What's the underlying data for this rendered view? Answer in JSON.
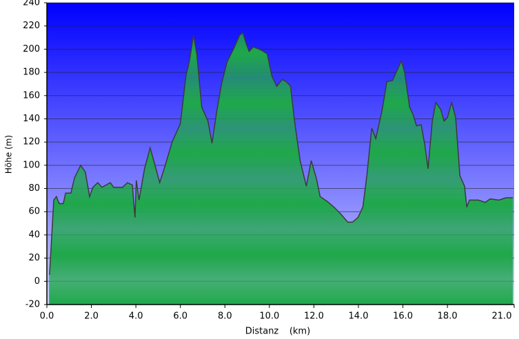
{
  "chart_data": {
    "type": "area",
    "x_label": "Distanz",
    "x_unit": "(km)",
    "y_label": "Höhe (m)",
    "grid": true,
    "background": [
      "#0000ff",
      "#d0d0ff"
    ],
    "color": "#1fa84a",
    "line_color": "#3a3a3a",
    "xlim": [
      0,
      21
    ],
    "ylim": [
      -20,
      240
    ],
    "xticks": [
      {
        "value": 0,
        "label": "0.0"
      },
      {
        "value": 2,
        "label": "2.0"
      },
      {
        "value": 4,
        "label": "4.0"
      },
      {
        "value": 6,
        "label": "6.0"
      },
      {
        "value": 8,
        "label": "8.0"
      },
      {
        "value": 10,
        "label": "10.0"
      },
      {
        "value": 12,
        "label": "12.0"
      },
      {
        "value": 14,
        "label": "14.0"
      },
      {
        "value": 16,
        "label": "16.0"
      },
      {
        "value": 18,
        "label": "18.0"
      },
      {
        "value": 21,
        "label": "21.0"
      }
    ],
    "yticks": [
      -20,
      0,
      20,
      40,
      60,
      80,
      100,
      120,
      140,
      160,
      180,
      200,
      220,
      240
    ],
    "x": [
      0.1,
      0.12,
      0.31,
      0.43,
      0.55,
      0.74,
      0.84,
      1.08,
      1.24,
      1.52,
      1.73,
      1.92,
      2.07,
      2.29,
      2.47,
      2.85,
      3.0,
      3.4,
      3.62,
      3.84,
      3.96,
      4.02,
      4.14,
      4.39,
      4.64,
      4.86,
      5.07,
      5.32,
      5.63,
      6.0,
      6.25,
      6.4,
      6.59,
      6.74,
      6.96,
      7.24,
      7.42,
      7.64,
      7.86,
      8.1,
      8.41,
      8.66,
      8.81,
      8.97,
      9.09,
      9.28,
      9.65,
      9.9,
      10.11,
      10.33,
      10.58,
      10.76,
      10.95,
      11.13,
      11.38,
      11.66,
      11.88,
      12.12,
      12.28,
      12.59,
      12.9,
      13.21,
      13.52,
      13.73,
      13.98,
      14.2,
      14.38,
      14.6,
      14.78,
      15.06,
      15.28,
      15.53,
      15.77,
      15.93,
      16.08,
      16.3,
      16.45,
      16.61,
      16.82,
      16.98,
      17.13,
      17.32,
      17.48,
      17.7,
      17.85,
      18.0,
      18.19,
      18.37,
      18.56,
      18.77,
      18.87,
      18.99,
      19.39,
      19.7,
      19.92,
      20.32,
      20.63,
      20.94
    ],
    "series": [
      {
        "values": [
          6,
          6,
          70,
          73,
          67,
          67,
          76,
          76,
          89,
          100,
          94,
          73,
          81,
          85,
          81,
          85,
          81,
          81,
          85,
          83,
          55,
          87,
          70,
          97,
          115,
          100,
          85,
          100,
          120,
          136,
          177,
          189,
          212,
          195,
          150,
          138,
          119,
          147,
          171,
          189,
          201,
          212,
          214,
          204,
          198,
          202,
          199,
          196,
          177,
          168,
          174,
          172,
          168,
          138,
          104,
          82,
          104,
          88,
          73,
          69,
          64,
          58,
          51,
          51,
          55,
          64,
          91,
          132,
          123,
          147,
          172,
          173,
          183,
          190,
          180,
          150,
          144,
          134,
          135,
          118,
          97,
          138,
          154,
          148,
          138,
          141,
          154,
          141,
          91,
          82,
          64,
          70,
          70,
          68,
          71,
          70,
          72,
          72
        ]
      }
    ]
  }
}
